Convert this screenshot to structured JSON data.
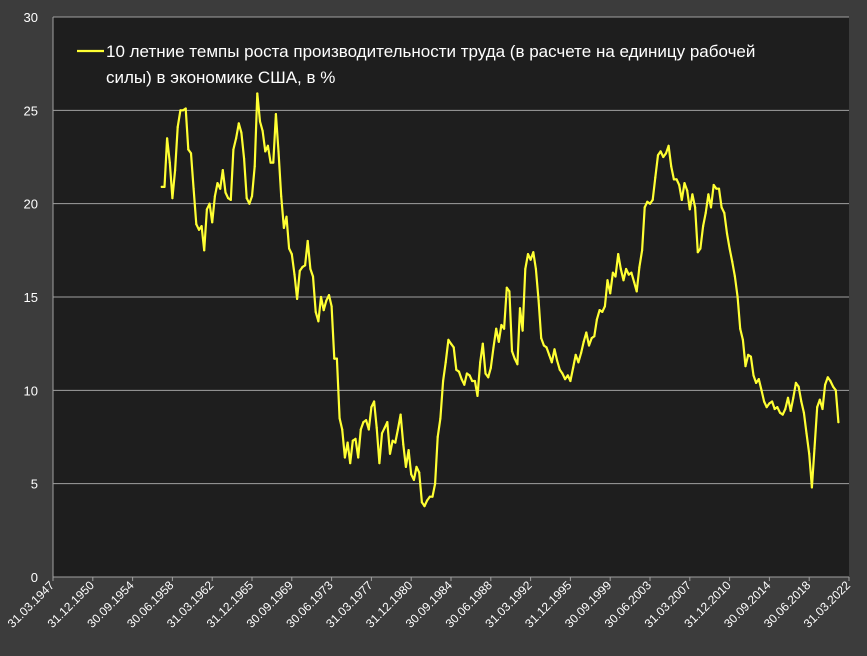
{
  "colors": {
    "background": "#3c3c3c",
    "plot_background": "#1e1e1e",
    "gridline": "#a0a0a0",
    "series_line": "#ffff33",
    "text": "#ffffff"
  },
  "chart_data": {
    "type": "line",
    "title": "",
    "xlabel": "",
    "ylabel": "",
    "grid": true,
    "legend_position": "top-right",
    "legend_lines": [
      "10 летние темпы роста производительности труда (в расчете на единицу рабочей",
      "силы) в экономике США, в %"
    ],
    "ylim": [
      0,
      30
    ],
    "y_ticks": [
      0,
      5,
      10,
      15,
      20,
      25,
      30
    ],
    "x_ticks": [
      "31.03.1947",
      "31.12.1950",
      "30.09.1954",
      "30.06.1958",
      "31.03.1962",
      "31.12.1965",
      "30.09.1969",
      "30.06.1973",
      "31.03.1977",
      "31.12.1980",
      "30.09.1984",
      "30.06.1988",
      "31.03.1992",
      "31.12.1995",
      "30.09.1999",
      "30.06.2003",
      "31.03.2007",
      "31.12.2010",
      "30.09.2014",
      "30.06.2018",
      "31.03.2022"
    ],
    "x_range": [
      "1947-03-31",
      "2022-03-31"
    ],
    "series": [
      {
        "name": "10 летние темпы роста производительности труда (в расчете на единицу рабочей силы) в экономике США, в %",
        "points": [
          [
            "1957-06-30",
            20.9
          ],
          [
            "1957-09-30",
            20.9
          ],
          [
            "1957-12-31",
            23.5
          ],
          [
            "1958-03-31",
            22.2
          ],
          [
            "1958-06-30",
            20.3
          ],
          [
            "1958-09-30",
            21.8
          ],
          [
            "1958-12-31",
            24.1
          ],
          [
            "1959-03-31",
            25.0
          ],
          [
            "1959-06-30",
            25.0
          ],
          [
            "1959-09-30",
            25.1
          ],
          [
            "1959-12-31",
            22.9
          ],
          [
            "1960-03-31",
            22.7
          ],
          [
            "1960-06-30",
            20.8
          ],
          [
            "1960-09-30",
            18.9
          ],
          [
            "1960-12-31",
            18.6
          ],
          [
            "1961-03-31",
            18.8
          ],
          [
            "1961-06-30",
            17.5
          ],
          [
            "1961-09-30",
            19.7
          ],
          [
            "1961-12-31",
            20.0
          ],
          [
            "1962-03-31",
            19.0
          ],
          [
            "1962-06-30",
            20.4
          ],
          [
            "1962-09-30",
            21.1
          ],
          [
            "1962-12-31",
            20.8
          ],
          [
            "1963-03-31",
            21.8
          ],
          [
            "1963-06-30",
            20.6
          ],
          [
            "1963-09-30",
            20.3
          ],
          [
            "1963-12-31",
            20.2
          ],
          [
            "1964-03-31",
            22.9
          ],
          [
            "1964-06-30",
            23.5
          ],
          [
            "1964-09-30",
            24.3
          ],
          [
            "1964-12-31",
            23.8
          ],
          [
            "1965-03-31",
            22.4
          ],
          [
            "1965-06-30",
            20.3
          ],
          [
            "1965-09-30",
            20.0
          ],
          [
            "1965-12-31",
            20.4
          ],
          [
            "1966-03-31",
            22.0
          ],
          [
            "1966-06-30",
            25.9
          ],
          [
            "1966-09-30",
            24.4
          ],
          [
            "1966-12-31",
            23.9
          ],
          [
            "1967-03-31",
            22.8
          ],
          [
            "1967-06-30",
            23.1
          ],
          [
            "1967-09-30",
            22.2
          ],
          [
            "1967-12-31",
            22.2
          ],
          [
            "1968-03-31",
            24.8
          ],
          [
            "1968-06-30",
            22.8
          ],
          [
            "1968-09-30",
            20.4
          ],
          [
            "1968-12-31",
            18.7
          ],
          [
            "1969-03-31",
            19.3
          ],
          [
            "1969-06-30",
            17.6
          ],
          [
            "1969-09-30",
            17.3
          ],
          [
            "1969-12-31",
            16.2
          ],
          [
            "1970-03-31",
            14.9
          ],
          [
            "1970-06-30",
            16.4
          ],
          [
            "1970-09-30",
            16.6
          ],
          [
            "1970-12-31",
            16.7
          ],
          [
            "1971-03-31",
            18.0
          ],
          [
            "1971-06-30",
            16.5
          ],
          [
            "1971-09-30",
            16.1
          ],
          [
            "1971-12-31",
            14.2
          ],
          [
            "1972-03-31",
            13.7
          ],
          [
            "1972-06-30",
            15.0
          ],
          [
            "1972-09-30",
            14.3
          ],
          [
            "1972-12-31",
            14.8
          ],
          [
            "1973-03-31",
            15.1
          ],
          [
            "1973-06-30",
            14.5
          ],
          [
            "1973-09-30",
            11.7
          ],
          [
            "1973-12-31",
            11.7
          ],
          [
            "1974-03-31",
            8.5
          ],
          [
            "1974-06-30",
            7.9
          ],
          [
            "1974-09-30",
            6.4
          ],
          [
            "1974-12-31",
            7.2
          ],
          [
            "1975-03-31",
            6.1
          ],
          [
            "1975-06-30",
            7.3
          ],
          [
            "1975-09-30",
            7.4
          ],
          [
            "1975-12-31",
            6.4
          ],
          [
            "1976-03-31",
            7.9
          ],
          [
            "1976-06-30",
            8.3
          ],
          [
            "1976-09-30",
            8.4
          ],
          [
            "1976-12-31",
            7.9
          ],
          [
            "1977-03-31",
            9.1
          ],
          [
            "1977-06-30",
            9.4
          ],
          [
            "1977-09-30",
            8.0
          ],
          [
            "1977-12-31",
            6.1
          ],
          [
            "1978-03-31",
            7.7
          ],
          [
            "1978-06-30",
            8.0
          ],
          [
            "1978-09-30",
            8.3
          ],
          [
            "1978-12-31",
            6.6
          ],
          [
            "1979-03-31",
            7.3
          ],
          [
            "1979-06-30",
            7.2
          ],
          [
            "1979-09-30",
            7.9
          ],
          [
            "1979-12-31",
            8.7
          ],
          [
            "1980-03-31",
            7.1
          ],
          [
            "1980-06-30",
            5.9
          ],
          [
            "1980-09-30",
            6.8
          ],
          [
            "1980-12-31",
            5.5
          ],
          [
            "1981-03-31",
            5.2
          ],
          [
            "1981-06-30",
            5.9
          ],
          [
            "1981-09-30",
            5.6
          ],
          [
            "1981-12-31",
            4.0
          ],
          [
            "1982-03-31",
            3.8
          ],
          [
            "1982-06-30",
            4.1
          ],
          [
            "1982-09-30",
            4.3
          ],
          [
            "1982-12-31",
            4.3
          ],
          [
            "1983-03-31",
            5.0
          ],
          [
            "1983-06-30",
            7.5
          ],
          [
            "1983-09-30",
            8.5
          ],
          [
            "1983-12-31",
            10.5
          ],
          [
            "1984-03-31",
            11.5
          ],
          [
            "1984-06-30",
            12.7
          ],
          [
            "1984-09-30",
            12.5
          ],
          [
            "1984-12-31",
            12.3
          ],
          [
            "1985-03-31",
            11.1
          ],
          [
            "1985-06-30",
            11.0
          ],
          [
            "1985-09-30",
            10.6
          ],
          [
            "1985-12-31",
            10.3
          ],
          [
            "1986-03-31",
            10.9
          ],
          [
            "1986-06-30",
            10.8
          ],
          [
            "1986-09-30",
            10.5
          ],
          [
            "1986-12-31",
            10.5
          ],
          [
            "1987-03-31",
            9.7
          ],
          [
            "1987-06-30",
            11.5
          ],
          [
            "1987-09-30",
            12.5
          ],
          [
            "1987-12-31",
            10.9
          ],
          [
            "1988-03-31",
            10.7
          ],
          [
            "1988-06-30",
            11.2
          ],
          [
            "1988-09-30",
            12.3
          ],
          [
            "1988-12-31",
            13.3
          ],
          [
            "1989-03-31",
            12.6
          ],
          [
            "1989-06-30",
            13.5
          ],
          [
            "1989-09-30",
            13.3
          ],
          [
            "1989-12-31",
            15.5
          ],
          [
            "1990-03-31",
            15.3
          ],
          [
            "1990-06-30",
            12.1
          ],
          [
            "1990-09-30",
            11.7
          ],
          [
            "1990-12-31",
            11.4
          ],
          [
            "1991-03-31",
            14.4
          ],
          [
            "1991-06-30",
            13.2
          ],
          [
            "1991-09-30",
            16.5
          ],
          [
            "1991-12-31",
            17.3
          ],
          [
            "1992-03-31",
            17.0
          ],
          [
            "1992-06-30",
            17.4
          ],
          [
            "1992-09-30",
            16.5
          ],
          [
            "1992-12-31",
            14.8
          ],
          [
            "1993-03-31",
            12.8
          ],
          [
            "1993-06-30",
            12.4
          ],
          [
            "1993-09-30",
            12.3
          ],
          [
            "1993-12-31",
            11.9
          ],
          [
            "1994-03-31",
            11.5
          ],
          [
            "1994-06-30",
            12.2
          ],
          [
            "1994-09-30",
            11.6
          ],
          [
            "1994-12-31",
            11.1
          ],
          [
            "1995-03-31",
            10.9
          ],
          [
            "1995-06-30",
            10.6
          ],
          [
            "1995-09-30",
            10.8
          ],
          [
            "1995-12-31",
            10.5
          ],
          [
            "1996-03-31",
            11.2
          ],
          [
            "1996-06-30",
            11.9
          ],
          [
            "1996-09-30",
            11.5
          ],
          [
            "1996-12-31",
            12.0
          ],
          [
            "1997-03-31",
            12.6
          ],
          [
            "1997-06-30",
            13.1
          ],
          [
            "1997-09-30",
            12.4
          ],
          [
            "1997-12-31",
            12.8
          ],
          [
            "1998-03-31",
            12.9
          ],
          [
            "1998-06-30",
            13.8
          ],
          [
            "1998-09-30",
            14.3
          ],
          [
            "1998-12-31",
            14.2
          ],
          [
            "1999-03-31",
            14.5
          ],
          [
            "1999-06-30",
            15.9
          ],
          [
            "1999-09-30",
            15.2
          ],
          [
            "1999-12-31",
            16.3
          ],
          [
            "2000-03-31",
            16.1
          ],
          [
            "2000-06-30",
            17.3
          ],
          [
            "2000-09-30",
            16.5
          ],
          [
            "2000-12-31",
            15.9
          ],
          [
            "2001-03-31",
            16.5
          ],
          [
            "2001-06-30",
            16.2
          ],
          [
            "2001-09-30",
            16.3
          ],
          [
            "2001-12-31",
            15.8
          ],
          [
            "2002-03-31",
            15.3
          ],
          [
            "2002-06-30",
            16.6
          ],
          [
            "2002-09-30",
            17.5
          ],
          [
            "2002-12-31",
            19.8
          ],
          [
            "2003-03-31",
            20.1
          ],
          [
            "2003-06-30",
            20.0
          ],
          [
            "2003-09-30",
            20.2
          ],
          [
            "2003-12-31",
            21.4
          ],
          [
            "2004-03-31",
            22.6
          ],
          [
            "2004-06-30",
            22.8
          ],
          [
            "2004-09-30",
            22.5
          ],
          [
            "2004-12-31",
            22.7
          ],
          [
            "2005-03-31",
            23.1
          ],
          [
            "2005-06-30",
            22.0
          ],
          [
            "2005-09-30",
            21.3
          ],
          [
            "2005-12-31",
            21.3
          ],
          [
            "2006-03-31",
            21.0
          ],
          [
            "2006-06-30",
            20.2
          ],
          [
            "2006-09-30",
            21.1
          ],
          [
            "2006-12-31",
            20.7
          ],
          [
            "2007-03-31",
            19.7
          ],
          [
            "2007-06-30",
            20.5
          ],
          [
            "2007-09-30",
            19.8
          ],
          [
            "2007-12-31",
            17.4
          ],
          [
            "2008-03-31",
            17.6
          ],
          [
            "2008-06-30",
            18.8
          ],
          [
            "2008-09-30",
            19.5
          ],
          [
            "2008-12-31",
            20.5
          ],
          [
            "2009-03-31",
            19.8
          ],
          [
            "2009-06-30",
            21.0
          ],
          [
            "2009-09-30",
            20.8
          ],
          [
            "2009-12-31",
            20.8
          ],
          [
            "2010-03-31",
            19.8
          ],
          [
            "2010-06-30",
            19.5
          ],
          [
            "2010-09-30",
            18.4
          ],
          [
            "2010-12-31",
            17.6
          ],
          [
            "2011-03-31",
            16.9
          ],
          [
            "2011-06-30",
            16.1
          ],
          [
            "2011-09-30",
            15.0
          ],
          [
            "2011-12-31",
            13.3
          ],
          [
            "2012-03-31",
            12.7
          ],
          [
            "2012-06-30",
            11.3
          ],
          [
            "2012-09-30",
            11.9
          ],
          [
            "2012-12-31",
            11.8
          ],
          [
            "2013-03-31",
            10.8
          ],
          [
            "2013-06-30",
            10.4
          ],
          [
            "2013-09-30",
            10.6
          ],
          [
            "2013-12-31",
            10.0
          ],
          [
            "2014-03-31",
            9.4
          ],
          [
            "2014-06-30",
            9.1
          ],
          [
            "2014-09-30",
            9.3
          ],
          [
            "2014-12-31",
            9.4
          ],
          [
            "2015-03-31",
            9.0
          ],
          [
            "2015-06-30",
            9.1
          ],
          [
            "2015-09-30",
            8.8
          ],
          [
            "2015-12-31",
            8.7
          ],
          [
            "2016-03-31",
            9.0
          ],
          [
            "2016-06-30",
            9.6
          ],
          [
            "2016-09-30",
            8.9
          ],
          [
            "2016-12-31",
            9.6
          ],
          [
            "2017-03-31",
            10.4
          ],
          [
            "2017-06-30",
            10.2
          ],
          [
            "2017-09-30",
            9.4
          ],
          [
            "2017-12-31",
            8.8
          ],
          [
            "2018-03-31",
            7.7
          ],
          [
            "2018-06-30",
            6.6
          ],
          [
            "2018-09-30",
            4.8
          ],
          [
            "2018-12-31",
            6.9
          ],
          [
            "2019-03-31",
            9.1
          ],
          [
            "2019-06-30",
            9.5
          ],
          [
            "2019-09-30",
            9.0
          ],
          [
            "2019-12-31",
            10.3
          ],
          [
            "2020-03-31",
            10.7
          ],
          [
            "2020-06-30",
            10.5
          ],
          [
            "2020-09-30",
            10.2
          ],
          [
            "2020-12-31",
            10.0
          ],
          [
            "2021-03-31",
            8.3
          ]
        ]
      }
    ]
  }
}
